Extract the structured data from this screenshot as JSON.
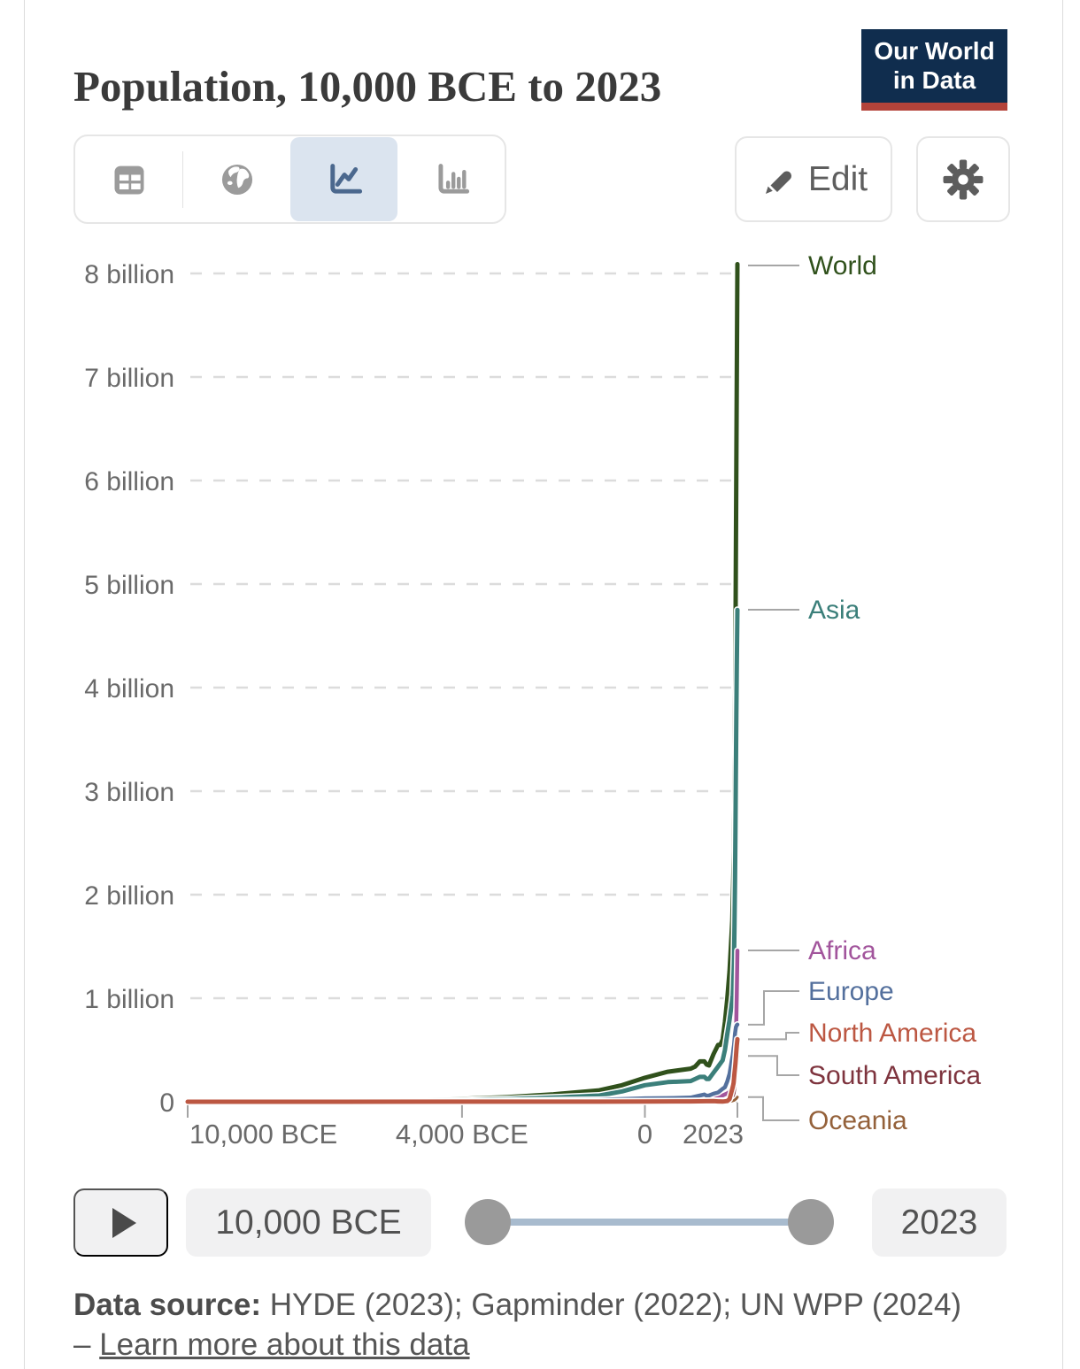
{
  "header": {
    "title": "Population, 10,000 BCE to 2023",
    "logo": {
      "line1": "Our World",
      "line2": "in Data",
      "bg_color": "#102d4e",
      "accent_color": "#b4433a"
    }
  },
  "toolbar": {
    "views": [
      {
        "id": "table",
        "icon": "table-grid-icon",
        "selected": false
      },
      {
        "id": "map",
        "icon": "globe-icon",
        "selected": false
      },
      {
        "id": "line-chart",
        "icon": "line-chart-icon",
        "selected": true
      },
      {
        "id": "bar-chart",
        "icon": "bar-chart-icon",
        "selected": false
      }
    ],
    "selected_bg_color": "#dbe4ef",
    "edit_label": "Edit",
    "edit_icon": "pencil-icon",
    "settings_icon": "gear-icon"
  },
  "chart_data": {
    "type": "line",
    "title": "Population, 10,000 BCE to 2023",
    "unit": "people",
    "grid": "dashed-horizontal",
    "legend": "right-edge-labels",
    "x_axis": {
      "range_years": [
        -10000,
        2023
      ],
      "ticks": [
        {
          "label": "10,000 BCE",
          "year": -10000
        },
        {
          "label": "4,000 BCE",
          "year": -4000
        },
        {
          "label": "0",
          "year": 0
        },
        {
          "label": "2023",
          "year": 2023
        }
      ]
    },
    "y_axis": {
      "range_billions": [
        0,
        8
      ],
      "ticks": [
        {
          "label": "0",
          "billions": 0
        },
        {
          "label": "1 billion",
          "billions": 1
        },
        {
          "label": "2 billion",
          "billions": 2
        },
        {
          "label": "3 billion",
          "billions": 3
        },
        {
          "label": "4 billion",
          "billions": 4
        },
        {
          "label": "5 billion",
          "billions": 5
        },
        {
          "label": "6 billion",
          "billions": 6
        },
        {
          "label": "7 billion",
          "billions": 7
        },
        {
          "label": "8 billion",
          "billions": 8
        }
      ]
    },
    "series": [
      {
        "name": "World",
        "color": "#30511c",
        "points_year_billions": [
          [
            -10000,
            0.004
          ],
          [
            -8000,
            0.008
          ],
          [
            -6000,
            0.015
          ],
          [
            -5000,
            0.019
          ],
          [
            -4000,
            0.028
          ],
          [
            -3000,
            0.045
          ],
          [
            -2000,
            0.072
          ],
          [
            -1000,
            0.11
          ],
          [
            -500,
            0.16
          ],
          [
            0,
            0.232
          ],
          [
            500,
            0.29
          ],
          [
            1000,
            0.32
          ],
          [
            1100,
            0.34
          ],
          [
            1200,
            0.39
          ],
          [
            1300,
            0.39
          ],
          [
            1350,
            0.36
          ],
          [
            1400,
            0.35
          ],
          [
            1500,
            0.46
          ],
          [
            1600,
            0.55
          ],
          [
            1650,
            0.55
          ],
          [
            1700,
            0.6
          ],
          [
            1750,
            0.77
          ],
          [
            1800,
            0.99
          ],
          [
            1850,
            1.26
          ],
          [
            1900,
            1.65
          ],
          [
            1910,
            1.75
          ],
          [
            1920,
            1.91
          ],
          [
            1930,
            2.1
          ],
          [
            1940,
            2.3
          ],
          [
            1950,
            2.5
          ],
          [
            1960,
            3.02
          ],
          [
            1970,
            3.69
          ],
          [
            1980,
            4.44
          ],
          [
            1990,
            5.32
          ],
          [
            2000,
            6.15
          ],
          [
            2010,
            6.99
          ],
          [
            2023,
            8.09
          ]
        ]
      },
      {
        "name": "Asia",
        "color": "#3b7f7a",
        "points_year_billions": [
          [
            -10000,
            0.002
          ],
          [
            -6000,
            0.008
          ],
          [
            -4000,
            0.015
          ],
          [
            -3000,
            0.025
          ],
          [
            -2000,
            0.04
          ],
          [
            -1000,
            0.06
          ],
          [
            -500,
            0.1
          ],
          [
            0,
            0.16
          ],
          [
            500,
            0.19
          ],
          [
            1000,
            0.2
          ],
          [
            1200,
            0.24
          ],
          [
            1300,
            0.24
          ],
          [
            1350,
            0.22
          ],
          [
            1400,
            0.22
          ],
          [
            1500,
            0.28
          ],
          [
            1600,
            0.34
          ],
          [
            1700,
            0.4
          ],
          [
            1750,
            0.5
          ],
          [
            1800,
            0.65
          ],
          [
            1850,
            0.79
          ],
          [
            1900,
            0.95
          ],
          [
            1920,
            1.03
          ],
          [
            1940,
            1.25
          ],
          [
            1950,
            1.4
          ],
          [
            1960,
            1.7
          ],
          [
            1970,
            2.14
          ],
          [
            1980,
            2.63
          ],
          [
            1990,
            3.21
          ],
          [
            2000,
            3.74
          ],
          [
            2010,
            4.21
          ],
          [
            2023,
            4.75
          ]
        ]
      },
      {
        "name": "Africa",
        "color": "#a2559c",
        "points_year_billions": [
          [
            -10000,
            0.001
          ],
          [
            -4000,
            0.003
          ],
          [
            -1000,
            0.012
          ],
          [
            0,
            0.026
          ],
          [
            500,
            0.031
          ],
          [
            1000,
            0.039
          ],
          [
            1500,
            0.047
          ],
          [
            1600,
            0.055
          ],
          [
            1700,
            0.061
          ],
          [
            1800,
            0.081
          ],
          [
            1850,
            0.095
          ],
          [
            1900,
            0.14
          ],
          [
            1920,
            0.16
          ],
          [
            1940,
            0.21
          ],
          [
            1950,
            0.23
          ],
          [
            1960,
            0.28
          ],
          [
            1970,
            0.36
          ],
          [
            1980,
            0.48
          ],
          [
            1990,
            0.63
          ],
          [
            2000,
            0.81
          ],
          [
            2010,
            1.04
          ],
          [
            2023,
            1.46
          ]
        ]
      },
      {
        "name": "Europe",
        "color": "#54709d",
        "points_year_billions": [
          [
            -10000,
            0.001
          ],
          [
            -4000,
            0.004
          ],
          [
            -1000,
            0.02
          ],
          [
            0,
            0.033
          ],
          [
            500,
            0.035
          ],
          [
            1000,
            0.04
          ],
          [
            1200,
            0.06
          ],
          [
            1300,
            0.07
          ],
          [
            1350,
            0.058
          ],
          [
            1400,
            0.06
          ],
          [
            1500,
            0.078
          ],
          [
            1600,
            0.09
          ],
          [
            1700,
            0.125
          ],
          [
            1750,
            0.14
          ],
          [
            1800,
            0.195
          ],
          [
            1850,
            0.27
          ],
          [
            1900,
            0.4
          ],
          [
            1920,
            0.45
          ],
          [
            1940,
            0.52
          ],
          [
            1950,
            0.55
          ],
          [
            1960,
            0.6
          ],
          [
            1970,
            0.66
          ],
          [
            1980,
            0.69
          ],
          [
            1990,
            0.72
          ],
          [
            2000,
            0.73
          ],
          [
            2010,
            0.74
          ],
          [
            2023,
            0.745
          ]
        ]
      },
      {
        "name": "North America",
        "color": "#bc5742",
        "points_year_billions": [
          [
            -10000,
            0.0002
          ],
          [
            -1000,
            0.001
          ],
          [
            0,
            0.002
          ],
          [
            1000,
            0.003
          ],
          [
            1500,
            0.006
          ],
          [
            1600,
            0.003
          ],
          [
            1700,
            0.002
          ],
          [
            1800,
            0.007
          ],
          [
            1850,
            0.026
          ],
          [
            1900,
            0.105
          ],
          [
            1910,
            0.124
          ],
          [
            1920,
            0.142
          ],
          [
            1930,
            0.16
          ],
          [
            1940,
            0.18
          ],
          [
            1950,
            0.227
          ],
          [
            1960,
            0.277
          ],
          [
            1970,
            0.327
          ],
          [
            1980,
            0.372
          ],
          [
            1990,
            0.43
          ],
          [
            2000,
            0.49
          ],
          [
            2010,
            0.545
          ],
          [
            2023,
            0.604
          ]
        ]
      },
      {
        "name": "South America",
        "color": "#7e343e",
        "points_year_billions": [
          [
            -10000,
            0.0002
          ],
          [
            0,
            0.005
          ],
          [
            1000,
            0.008
          ],
          [
            1500,
            0.011
          ],
          [
            1600,
            0.009
          ],
          [
            1700,
            0.01
          ],
          [
            1800,
            0.015
          ],
          [
            1850,
            0.022
          ],
          [
            1900,
            0.039
          ],
          [
            1920,
            0.056
          ],
          [
            1940,
            0.085
          ],
          [
            1950,
            0.114
          ],
          [
            1960,
            0.148
          ],
          [
            1970,
            0.193
          ],
          [
            1980,
            0.242
          ],
          [
            1990,
            0.297
          ],
          [
            2000,
            0.35
          ],
          [
            2010,
            0.4
          ],
          [
            2023,
            0.442
          ]
        ]
      },
      {
        "name": "Oceania",
        "color": "#94613a",
        "points_year_billions": [
          [
            -10000,
            0.0001
          ],
          [
            0,
            0.001
          ],
          [
            1000,
            0.0015
          ],
          [
            1500,
            0.002
          ],
          [
            1800,
            0.002
          ],
          [
            1850,
            0.003
          ],
          [
            1900,
            0.006
          ],
          [
            1950,
            0.013
          ],
          [
            1970,
            0.02
          ],
          [
            1990,
            0.027
          ],
          [
            2000,
            0.031
          ],
          [
            2010,
            0.037
          ],
          [
            2023,
            0.045
          ]
        ]
      }
    ]
  },
  "timeline": {
    "play_icon": "play-icon",
    "start_label": "10,000 BCE",
    "end_label": "2023"
  },
  "footer": {
    "source_label": "Data source:",
    "source_text": " HYDE (2023); Gapminder (2022); UN WPP (2024) – ",
    "link_label": "Learn more about this data"
  }
}
